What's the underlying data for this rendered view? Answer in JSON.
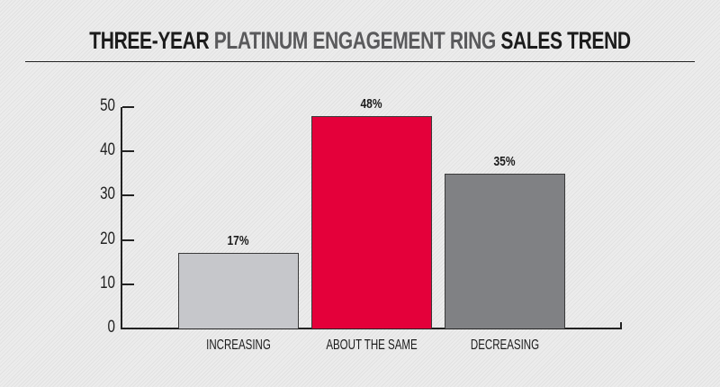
{
  "title": {
    "part1": "THREE-YEAR",
    "part2": "PLATINUM ENGAGEMENT RING",
    "part3": "SALES TREND"
  },
  "colors": {
    "increasing": "#c6c7cb",
    "about_the_same": "#e4003a",
    "decreasing": "#808184",
    "axis": "#222222"
  },
  "chart_data": {
    "type": "bar",
    "title": "THREE-YEAR PLATINUM ENGAGEMENT RING SALES TREND",
    "categories": [
      "INCREASING",
      "ABOUT THE SAME",
      "DECREASING"
    ],
    "values": [
      17,
      48,
      35
    ],
    "value_labels": [
      "17%",
      "48%",
      "35%"
    ],
    "xlabel": "",
    "ylabel": "",
    "ylim": [
      0,
      50
    ],
    "yticks": [
      0,
      10,
      20,
      30,
      40,
      50
    ],
    "grid": false,
    "legend": null
  }
}
